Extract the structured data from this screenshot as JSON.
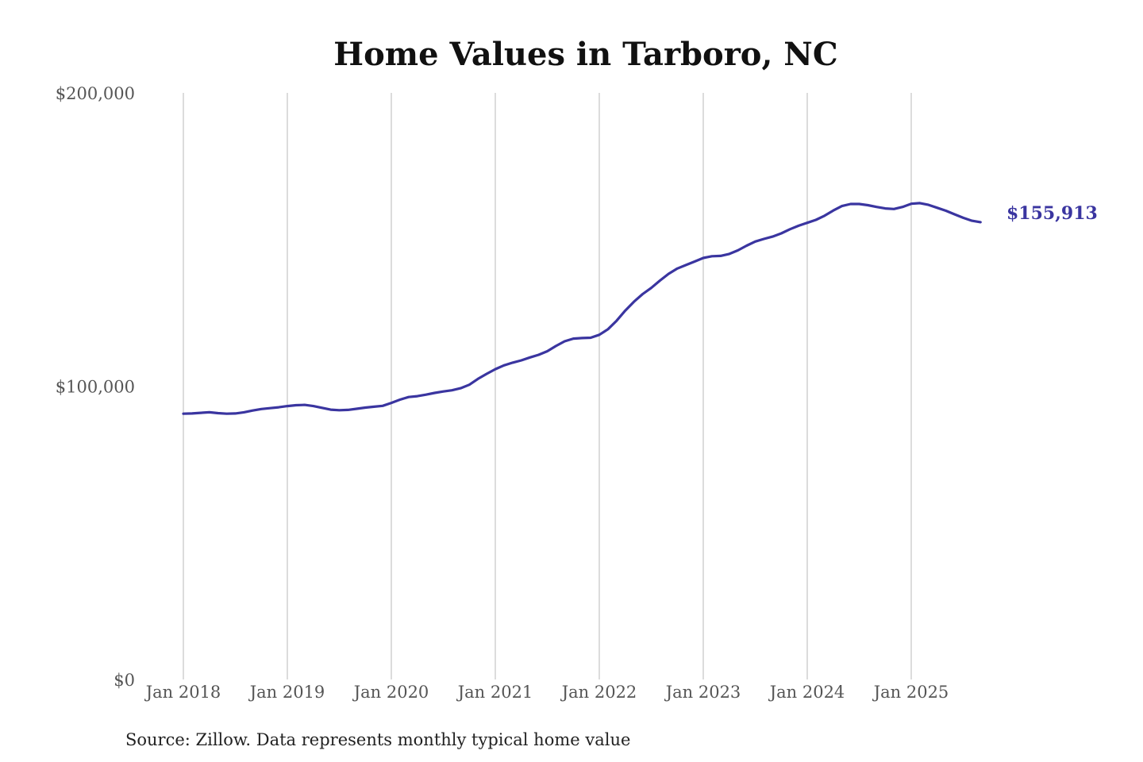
{
  "chart_data": {
    "type": "line",
    "title": "Home Values in Tarboro, NC",
    "xlabel": "",
    "ylabel": "",
    "ylim": [
      0,
      200000
    ],
    "y_ticks": [
      {
        "value": 0,
        "label": "$0"
      },
      {
        "value": 100000,
        "label": "$100,000"
      },
      {
        "value": 200000,
        "label": "$200,000"
      }
    ],
    "x_ticks": [
      {
        "value": "2018-01",
        "label": "Jan 2018"
      },
      {
        "value": "2019-01",
        "label": "Jan 2019"
      },
      {
        "value": "2020-01",
        "label": "Jan 2020"
      },
      {
        "value": "2021-01",
        "label": "Jan 2021"
      },
      {
        "value": "2022-01",
        "label": "Jan 2022"
      },
      {
        "value": "2023-01",
        "label": "Jan 2023"
      },
      {
        "value": "2024-01",
        "label": "Jan 2024"
      },
      {
        "value": "2025-01",
        "label": "Jan 2025"
      }
    ],
    "grid": "vertical",
    "legend": "none",
    "end_label": "$155,913",
    "color": "#3a35a0",
    "series": [
      {
        "x": [
          "2018-01",
          "2018-02",
          "2018-03",
          "2018-04",
          "2018-05",
          "2018-06",
          "2018-07",
          "2018-08",
          "2018-09",
          "2018-10",
          "2018-11",
          "2018-12",
          "2019-01",
          "2019-02",
          "2019-03",
          "2019-04",
          "2019-05",
          "2019-06",
          "2019-07",
          "2019-08",
          "2019-09",
          "2019-10",
          "2019-11",
          "2019-12",
          "2020-01",
          "2020-02",
          "2020-03",
          "2020-04",
          "2020-05",
          "2020-06",
          "2020-07",
          "2020-08",
          "2020-09",
          "2020-10",
          "2020-11",
          "2020-12",
          "2021-01",
          "2021-02",
          "2021-03",
          "2021-04",
          "2021-05",
          "2021-06",
          "2021-07",
          "2021-08",
          "2021-09",
          "2021-10",
          "2021-11",
          "2021-12",
          "2022-01",
          "2022-02",
          "2022-03",
          "2022-04",
          "2022-05",
          "2022-06",
          "2022-07",
          "2022-08",
          "2022-09",
          "2022-10",
          "2022-11",
          "2022-12",
          "2023-01",
          "2023-02",
          "2023-03",
          "2023-04",
          "2023-05",
          "2023-06",
          "2023-07",
          "2023-08",
          "2023-09",
          "2023-10",
          "2023-11",
          "2023-12",
          "2024-01",
          "2024-02",
          "2024-03",
          "2024-04",
          "2024-05",
          "2024-06",
          "2024-07",
          "2024-08",
          "2024-09",
          "2024-10",
          "2024-11",
          "2024-12",
          "2025-01",
          "2025-02",
          "2025-03",
          "2025-04",
          "2025-05",
          "2025-06",
          "2025-07",
          "2025-08",
          "2025-09"
        ],
        "values": [
          90600,
          90700,
          90900,
          91100,
          90800,
          90600,
          90700,
          91100,
          91700,
          92200,
          92500,
          92800,
          93200,
          93500,
          93600,
          93200,
          92600,
          92000,
          91800,
          91900,
          92300,
          92700,
          93000,
          93300,
          94300,
          95400,
          96300,
          96600,
          97100,
          97700,
          98200,
          98600,
          99300,
          100500,
          102500,
          104200,
          105800,
          107100,
          108000,
          108800,
          109800,
          110700,
          111900,
          113700,
          115300,
          116200,
          116400,
          116500,
          117500,
          119400,
          122300,
          125800,
          128800,
          131400,
          133500,
          136000,
          138300,
          140100,
          141300,
          142500,
          143700,
          144300,
          144400,
          145100,
          146300,
          147900,
          149300,
          150200,
          151000,
          152100,
          153500,
          154700,
          155700,
          156700,
          158100,
          159900,
          161400,
          162100,
          162100,
          161700,
          161100,
          160600,
          160400,
          161100,
          162200,
          162400,
          161800,
          160800,
          159800,
          158600,
          157400,
          156400,
          155913
        ]
      }
    ]
  },
  "source": "Source: Zillow. Data represents monthly typical home value"
}
